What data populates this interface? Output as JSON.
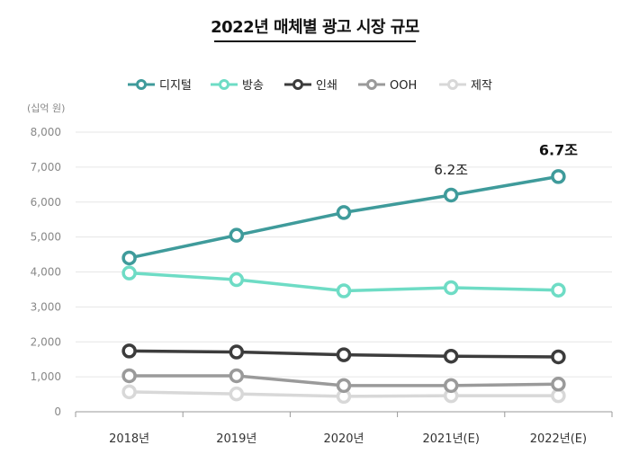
{
  "chart_data": {
    "type": "line",
    "title": "2022년 매체별 광고 시장 규모",
    "ylabel": "(십억 원)",
    "categories": [
      "2018년",
      "2019년",
      "2020년",
      "2021년(E)",
      "2022년(E)"
    ],
    "ylim": [
      0,
      8000
    ],
    "yticks": [
      "0",
      "1,000",
      "2,000",
      "3,000",
      "4,000",
      "5,000",
      "6,000",
      "7,000",
      "8,000"
    ],
    "grid": true,
    "legend_position": "top",
    "series": [
      {
        "name": "디지털",
        "color": "#3f9b9b",
        "values": [
          4400,
          5050,
          5700,
          6200,
          6730
        ]
      },
      {
        "name": "방송",
        "color": "#6edcc5",
        "values": [
          3970,
          3780,
          3460,
          3550,
          3480
        ]
      },
      {
        "name": "인쇄",
        "color": "#3c3c3c",
        "values": [
          1740,
          1710,
          1630,
          1590,
          1570
        ]
      },
      {
        "name": "OOH",
        "color": "#9a9a9a",
        "values": [
          1030,
          1030,
          750,
          750,
          790
        ]
      },
      {
        "name": "제작",
        "color": "#d8d8d8",
        "values": [
          570,
          510,
          440,
          460,
          460
        ]
      }
    ],
    "annotations": [
      {
        "text": "6.2조",
        "category": "2021년(E)",
        "bold": false
      },
      {
        "text": "6.7조",
        "category": "2022년(E)",
        "bold": true
      }
    ]
  }
}
